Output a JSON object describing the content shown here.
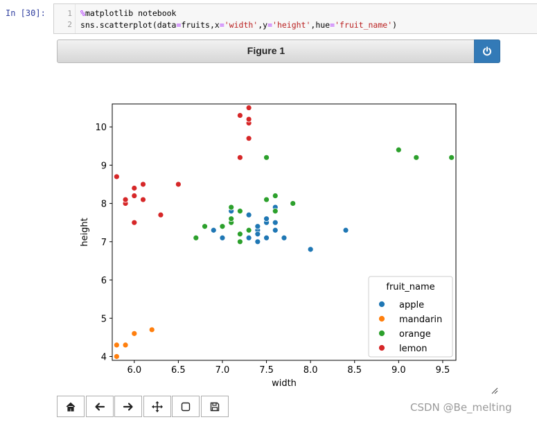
{
  "cell": {
    "prompt": "In  [30]:",
    "line_numbers": [
      "1",
      "2"
    ],
    "line1_magic": "%",
    "line1_rest": "matplotlib notebook",
    "line2_a": "sns.scatterplot(data",
    "line2_eq1": "=",
    "line2_b": "fruits,x",
    "line2_eq2": "=",
    "line2_s1": "'width'",
    "line2_c": ",y",
    "line2_eq3": "=",
    "line2_s2": "'height'",
    "line2_d": ",hue",
    "line2_eq4": "=",
    "line2_s3": "'fruit_name'",
    "line2_e": ")"
  },
  "figure": {
    "title": "Figure 1",
    "close_icon": "power-icon"
  },
  "toolbar": {
    "icons": [
      "home-icon",
      "back-arrow-icon",
      "forward-arrow-icon",
      "pan-move-icon",
      "zoom-rect-icon",
      "save-icon"
    ]
  },
  "watermark": "CSDN @Be_melting",
  "chart_data": {
    "type": "scatter",
    "xlabel": "width",
    "ylabel": "height",
    "xlim": [
      5.75,
      9.65
    ],
    "ylim": [
      3.9,
      10.6
    ],
    "xticks": [
      "6.0",
      "6.5",
      "7.0",
      "7.5",
      "8.0",
      "8.5",
      "9.0",
      "9.5"
    ],
    "yticks": [
      "4",
      "5",
      "6",
      "7",
      "8",
      "9",
      "10"
    ],
    "legend": {
      "title": "fruit_name",
      "placement": "lower-right"
    },
    "series": [
      {
        "name": "apple",
        "color": "#1f77b4",
        "points": [
          [
            7.4,
            7.3
          ],
          [
            6.9,
            7.3
          ],
          [
            7.1,
            7.8
          ],
          [
            7.0,
            7.1
          ],
          [
            7.3,
            7.7
          ],
          [
            7.3,
            7.1
          ],
          [
            7.5,
            7.5
          ],
          [
            7.5,
            7.6
          ],
          [
            7.4,
            7.4
          ],
          [
            7.4,
            7.0
          ],
          [
            7.4,
            7.2
          ],
          [
            7.5,
            7.1
          ],
          [
            7.6,
            7.3
          ],
          [
            7.6,
            7.5
          ],
          [
            7.6,
            7.9
          ],
          [
            7.7,
            7.1
          ],
          [
            8.0,
            6.8
          ],
          [
            8.4,
            7.3
          ]
        ]
      },
      {
        "name": "mandarin",
        "color": "#ff7f0e",
        "points": [
          [
            5.8,
            4.0
          ],
          [
            5.8,
            4.3
          ],
          [
            5.9,
            4.3
          ],
          [
            6.0,
            4.6
          ],
          [
            6.2,
            4.7
          ]
        ]
      },
      {
        "name": "orange",
        "color": "#2ca02c",
        "points": [
          [
            6.7,
            7.1
          ],
          [
            6.8,
            7.4
          ],
          [
            7.0,
            7.4
          ],
          [
            7.1,
            7.5
          ],
          [
            7.1,
            7.6
          ],
          [
            7.1,
            7.9
          ],
          [
            7.2,
            7.0
          ],
          [
            7.2,
            7.2
          ],
          [
            7.2,
            7.8
          ],
          [
            7.3,
            7.3
          ],
          [
            7.5,
            8.1
          ],
          [
            7.5,
            9.2
          ],
          [
            7.6,
            7.8
          ],
          [
            7.6,
            8.2
          ],
          [
            7.8,
            8.0
          ],
          [
            9.0,
            9.4
          ],
          [
            9.2,
            9.2
          ],
          [
            9.6,
            9.2
          ]
        ]
      },
      {
        "name": "lemon",
        "color": "#d62728",
        "points": [
          [
            5.8,
            8.7
          ],
          [
            5.9,
            8.0
          ],
          [
            5.9,
            8.1
          ],
          [
            6.0,
            7.5
          ],
          [
            6.0,
            8.2
          ],
          [
            6.0,
            8.4
          ],
          [
            6.1,
            8.1
          ],
          [
            6.1,
            8.5
          ],
          [
            6.3,
            7.7
          ],
          [
            6.5,
            8.5
          ],
          [
            7.2,
            9.2
          ],
          [
            7.2,
            10.3
          ],
          [
            7.3,
            9.7
          ],
          [
            7.3,
            10.1
          ],
          [
            7.3,
            10.2
          ],
          [
            7.3,
            10.5
          ]
        ]
      }
    ]
  }
}
